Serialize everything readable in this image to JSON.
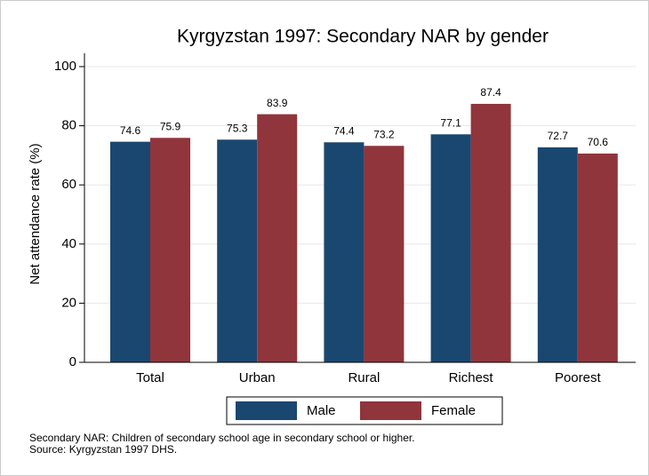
{
  "chart_data": {
    "type": "bar",
    "title": "Kyrgyzstan 1997: Secondary NAR by gender",
    "y_label": "Net attendance rate (%)",
    "categories": [
      "Total",
      "Urban",
      "Rural",
      "Richest",
      "Poorest"
    ],
    "series": [
      {
        "name": "Male",
        "color": "#1a476f",
        "values": [
          74.6,
          75.3,
          74.4,
          77.1,
          72.7
        ]
      },
      {
        "name": "Female",
        "color": "#90353b",
        "values": [
          75.9,
          83.9,
          73.2,
          87.4,
          70.6
        ]
      }
    ],
    "ylim": [
      0,
      100
    ],
    "yticks": [
      0,
      20,
      40,
      60,
      80,
      100
    ],
    "grid": true,
    "legend": "bottom",
    "notes": [
      "Secondary NAR: Children of secondary school age in secondary school or higher.",
      "Source: Kyrgyzstan 1997 DHS."
    ]
  }
}
